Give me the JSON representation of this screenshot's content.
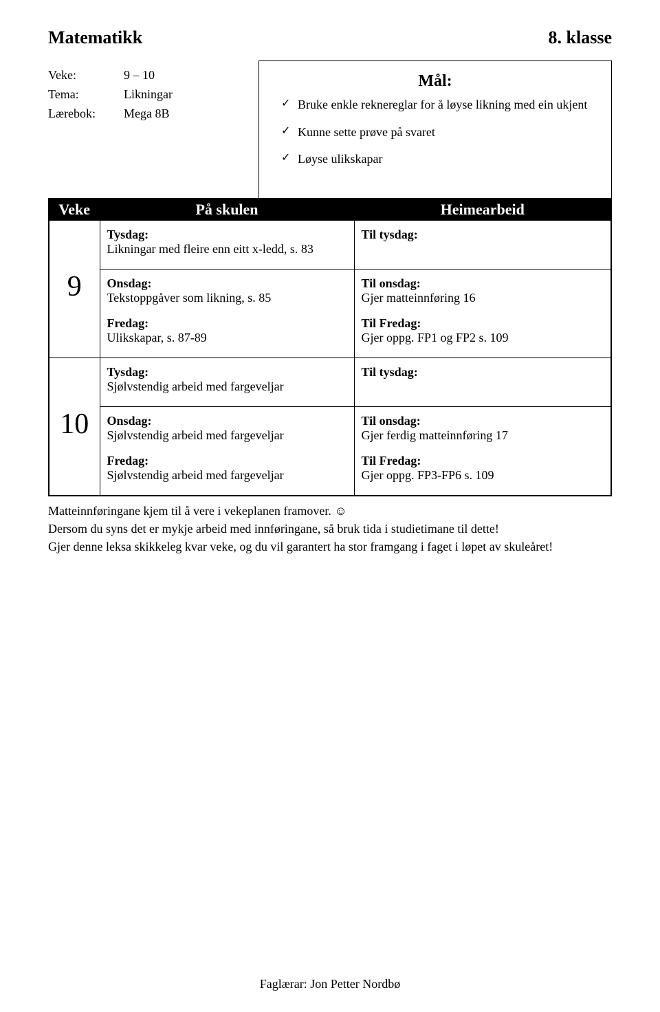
{
  "header": {
    "subject": "Matematikk",
    "grade": "8. klasse"
  },
  "meta": {
    "veke_label": "Veke:",
    "veke_value": "9 – 10",
    "tema_label": "Tema:",
    "tema_value": "Likningar",
    "laerebok_label": "Lærebok:",
    "laerebok_value": "Mega 8B"
  },
  "goals": {
    "title": "Mål:",
    "items": [
      "Bruke enkle reknereglar for å løyse likning med ein ukjent",
      "Kunne sette prøve på svaret",
      "Løyse ulikskapar"
    ]
  },
  "table": {
    "headers": {
      "veke": "Veke",
      "school": "På skulen",
      "home": "Heimearbeid"
    }
  },
  "weeks": [
    {
      "num": "9",
      "tysdag_row": {
        "school_title": "Tysdag:",
        "school_text": "Likningar med fleire enn eitt x-ledd, s. 83",
        "home_title": "Til tysdag:"
      },
      "rest_row": {
        "school": {
          "onsdag_title": "Onsdag:",
          "onsdag_text": "Tekstoppgåver som likning, s. 85",
          "fredag_title": "Fredag:",
          "fredag_text": "Ulikskapar, s. 87-89"
        },
        "home": {
          "onsdag_title": "Til onsdag:",
          "onsdag_text": "Gjer matteinnføring 16",
          "fredag_title": "Til Fredag:",
          "fredag_text": "Gjer oppg. FP1 og FP2 s. 109"
        }
      }
    },
    {
      "num": "10",
      "tysdag_row": {
        "school_title": "Tysdag:",
        "school_text": "Sjølvstendig arbeid med fargeveljar",
        "home_title": "Til tysdag:"
      },
      "rest_row": {
        "school": {
          "onsdag_title": "Onsdag:",
          "onsdag_text": "Sjølvstendig arbeid med fargeveljar",
          "fredag_title": "Fredag:",
          "fredag_text": "Sjølvstendig arbeid med fargeveljar"
        },
        "home": {
          "onsdag_title": "Til onsdag:",
          "onsdag_text": "Gjer ferdig matteinnføring 17",
          "fredag_title": "Til Fredag:",
          "fredag_text": "Gjer oppg. FP3-FP6 s. 109"
        }
      }
    }
  ],
  "notes": {
    "line1a": "Matteinnføringane kjem til å vere i vekeplanen framover. ",
    "smiley": "☺",
    "line2": "Dersom du syns det er mykje arbeid med innføringane, så bruk tida i studietimane til dette!",
    "line3": "Gjer denne leksa skikkeleg kvar veke, og du vil garantert ha stor framgang i faget i løpet av skuleåret!"
  },
  "footer": "Faglærar: Jon Petter Nordbø"
}
